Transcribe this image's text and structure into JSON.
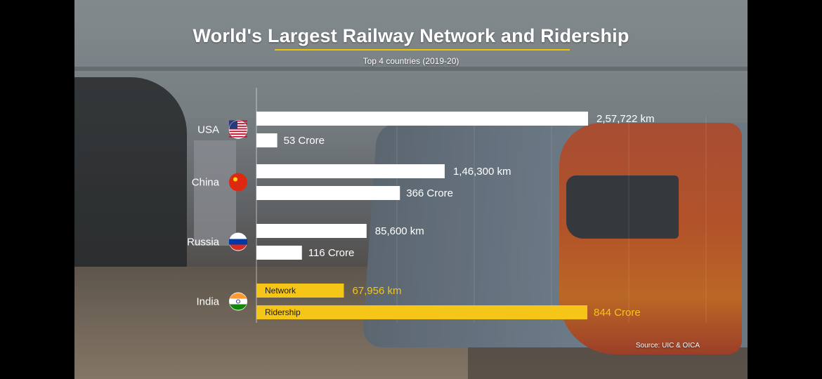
{
  "chart_data": {
    "type": "bar",
    "title": "World's Largest Railway Network and Ridership",
    "subtitle": "Top 4 countries (2019-20)",
    "categories": [
      "USA",
      "China",
      "Russia",
      "India"
    ],
    "series": [
      {
        "name": "Network",
        "values": [
          257722,
          146300,
          85600,
          67956
        ],
        "labels": [
          "2,57,722 km",
          "1,46,300 km",
          "85,600 km",
          "67,956 km"
        ]
      },
      {
        "name": "Ridership",
        "values": [
          53,
          366,
          116,
          844
        ],
        "labels": [
          "53 Crore",
          "366 Crore",
          "116 Crore",
          "844 Crore"
        ]
      }
    ],
    "flags": [
      "flag-usa-icon",
      "flag-china-icon",
      "flag-russia-icon",
      "flag-india-icon"
    ],
    "highlight_category": "India",
    "colors": {
      "default_bar": "#ffffff",
      "highlight_bar": "#f5c518",
      "highlight_text": "#f5c518",
      "label": "#ffffff"
    },
    "grid": true,
    "legend": "inline labels inside highlighted bars"
  },
  "source": "Source: UIC & OICA"
}
